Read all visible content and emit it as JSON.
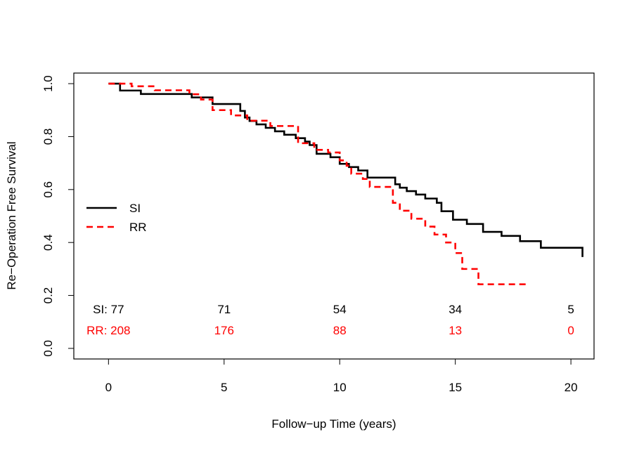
{
  "chart_data": {
    "type": "line",
    "subtype": "kaplan-meier step",
    "xlabel": "Follow−up Time (years)",
    "ylabel": "Re−Operation Free Survival",
    "xlim": [
      -1.5,
      21
    ],
    "ylim": [
      -0.04,
      1.04
    ],
    "xticks": [
      0,
      5,
      10,
      15,
      20
    ],
    "yticks": [
      0.0,
      0.2,
      0.4,
      0.6,
      0.8,
      1.0
    ],
    "xtick_labels": [
      "0",
      "5",
      "10",
      "15",
      "20"
    ],
    "ytick_labels": [
      "0.0",
      "0.2",
      "0.4",
      "0.6",
      "0.8",
      "1.0"
    ],
    "grid": false,
    "legend_position": "left-middle",
    "series": [
      {
        "name": "SI",
        "color": "#000000",
        "dash": "solid",
        "x": [
          0,
          0.5,
          1.4,
          3.6,
          4.5,
          5.7,
          5.9,
          6.1,
          6.4,
          6.8,
          7.2,
          7.6,
          8.1,
          8.5,
          8.7,
          9.0,
          9.6,
          10.0,
          10.4,
          10.8,
          11.2,
          12.4,
          12.6,
          12.9,
          13.3,
          13.7,
          14.2,
          14.4,
          14.9,
          15.5,
          16.2,
          17.0,
          17.8,
          18.7,
          20.5
        ],
        "y": [
          1.0,
          0.974,
          0.961,
          0.948,
          0.923,
          0.897,
          0.872,
          0.859,
          0.846,
          0.833,
          0.82,
          0.807,
          0.794,
          0.781,
          0.768,
          0.735,
          0.722,
          0.697,
          0.685,
          0.672,
          0.645,
          0.62,
          0.607,
          0.594,
          0.581,
          0.566,
          0.55,
          0.518,
          0.486,
          0.47,
          0.44,
          0.425,
          0.405,
          0.38,
          0.345
        ],
        "end_x": 20.5
      },
      {
        "name": "RR",
        "color": "#ff0000",
        "dash": "dashed",
        "x": [
          0,
          1.0,
          2.0,
          3.5,
          4.0,
          4.5,
          5.3,
          6.0,
          7.0,
          8.2,
          8.9,
          9.5,
          10.0,
          10.3,
          10.5,
          11.0,
          11.3,
          12.3,
          12.6,
          13.1,
          13.7,
          14.1,
          14.6,
          15.0,
          15.3,
          16.0,
          18.2
        ],
        "y": [
          1.0,
          0.99,
          0.975,
          0.96,
          0.94,
          0.9,
          0.88,
          0.86,
          0.84,
          0.775,
          0.75,
          0.74,
          0.71,
          0.69,
          0.66,
          0.64,
          0.61,
          0.55,
          0.52,
          0.49,
          0.46,
          0.43,
          0.4,
          0.36,
          0.3,
          0.242,
          0.242
        ],
        "end_x": 18.2
      }
    ],
    "at_risk": {
      "times": [
        0,
        5,
        10,
        15,
        20
      ],
      "rows": [
        {
          "label": "SI: ",
          "color": "#000000",
          "values": [
            "77",
            "71",
            "54",
            "34",
            "5"
          ]
        },
        {
          "label": "RR: ",
          "color": "#ff0000",
          "values": [
            "208",
            "176",
            "88",
            "13",
            "0"
          ]
        }
      ]
    }
  }
}
